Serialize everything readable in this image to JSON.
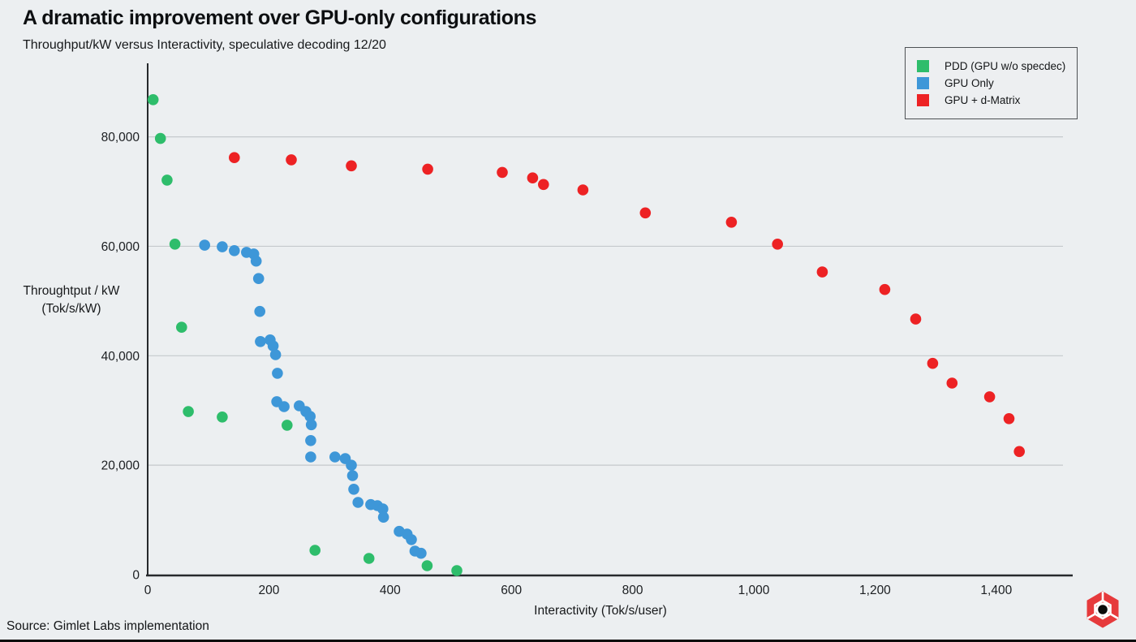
{
  "page": {
    "title": "A dramatic improvement over GPU-only configurations",
    "subtitle": "Throughput/kW versus Interactivity, speculative decoding 12/20",
    "source": "Source: Gimlet Labs implementation"
  },
  "colors": {
    "background": "#eceff1",
    "gridline": "#c5c9cc",
    "axis": "#26292c",
    "tick_text": "#1b1e21",
    "green": "#2ebd6b",
    "blue": "#3e97d8",
    "red": "#ed2224"
  },
  "legend": {
    "items": [
      {
        "label": "PDD (GPU w/o specdec)",
        "color": "#2ebd6b"
      },
      {
        "label": "GPU Only",
        "color": "#3e97d8"
      },
      {
        "label": "GPU + d-Matrix",
        "color": "#ed2224"
      }
    ]
  },
  "chart_data": {
    "type": "scatter",
    "title": "A dramatic improvement over GPU-only configurations",
    "subtitle": "Throughput/kW versus Interactivity, speculative decoding 12/20",
    "xlabel": "Interactivity (Tok/s/user)",
    "ylabel_line1": "Throughtput / kW",
    "ylabel_line2": "(Tok/s/kW)",
    "x_domain": [
      0,
      1510
    ],
    "y_domain": [
      0,
      92400
    ],
    "grid": "horizontal",
    "legend_position": "top-right",
    "marker_radius": 6.8,
    "x_ticks": [
      {
        "v": 0,
        "label": "0"
      },
      {
        "v": 200,
        "label": "200"
      },
      {
        "v": 400,
        "label": "400"
      },
      {
        "v": 600,
        "label": "600"
      },
      {
        "v": 800,
        "label": "800"
      },
      {
        "v": 1000,
        "label": "1,000"
      },
      {
        "v": 1200,
        "label": "1,200"
      },
      {
        "v": 1400,
        "label": "1,400"
      }
    ],
    "y_ticks": [
      {
        "v": 0,
        "label": "0"
      },
      {
        "v": 20000,
        "label": "20,000"
      },
      {
        "v": 40000,
        "label": "40,000"
      },
      {
        "v": 60000,
        "label": "60,000"
      },
      {
        "v": 80000,
        "label": "80,000"
      }
    ],
    "series": [
      {
        "name": "PDD (GPU w/o specdec)",
        "color": "#2ebd6b",
        "points": [
          [
            9,
            86800
          ],
          [
            21,
            79700
          ],
          [
            32,
            72100
          ],
          [
            45,
            60400
          ],
          [
            56,
            45200
          ],
          [
            67,
            29800
          ],
          [
            123,
            28800
          ],
          [
            230,
            27300
          ],
          [
            276,
            4450
          ],
          [
            365,
            2970
          ],
          [
            461,
            1630
          ],
          [
            510,
            740
          ]
        ]
      },
      {
        "name": "GPU Only",
        "color": "#3e97d8",
        "points": [
          [
            94,
            60200
          ],
          [
            123,
            59900
          ],
          [
            143,
            59200
          ],
          [
            163,
            58900
          ],
          [
            175,
            58600
          ],
          [
            179,
            57300
          ],
          [
            183,
            54100
          ],
          [
            185,
            48100
          ],
          [
            186,
            42600
          ],
          [
            202,
            42900
          ],
          [
            207,
            41800
          ],
          [
            211,
            40200
          ],
          [
            214,
            36800
          ],
          [
            213,
            31600
          ],
          [
            225,
            30700
          ],
          [
            250,
            30850
          ],
          [
            261,
            29800
          ],
          [
            268,
            28900
          ],
          [
            270,
            27400
          ],
          [
            269,
            24500
          ],
          [
            269,
            21500
          ],
          [
            309,
            21500
          ],
          [
            326,
            21200
          ],
          [
            336,
            20000
          ],
          [
            338,
            18100
          ],
          [
            340,
            15600
          ],
          [
            347,
            13200
          ],
          [
            368,
            12800
          ],
          [
            379,
            12600
          ],
          [
            388,
            12000
          ],
          [
            389,
            10500
          ],
          [
            415,
            7900
          ],
          [
            428,
            7400
          ],
          [
            435,
            6400
          ],
          [
            441,
            4300
          ],
          [
            451,
            3900
          ]
        ]
      },
      {
        "name": "GPU + d-Matrix",
        "color": "#ed2224",
        "points": [
          [
            143,
            76200
          ],
          [
            237,
            75800
          ],
          [
            336,
            74700
          ],
          [
            462,
            74100
          ],
          [
            585,
            73500
          ],
          [
            635,
            72500
          ],
          [
            653,
            71300
          ],
          [
            718,
            70300
          ],
          [
            821,
            66100
          ],
          [
            963,
            64400
          ],
          [
            1039,
            60400
          ],
          [
            1113,
            55300
          ],
          [
            1216,
            52100
          ],
          [
            1267,
            46700
          ],
          [
            1295,
            38600
          ],
          [
            1327,
            35000
          ],
          [
            1389,
            32500
          ],
          [
            1421,
            28500
          ],
          [
            1438,
            22500
          ]
        ]
      }
    ]
  }
}
